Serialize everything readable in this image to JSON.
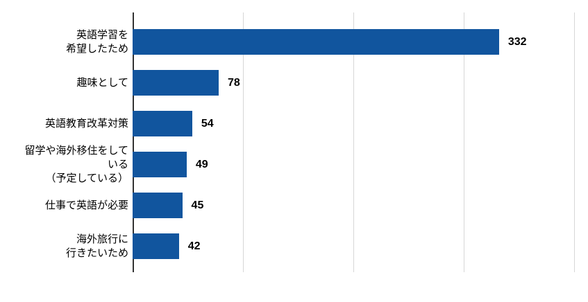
{
  "chart_data": {
    "type": "bar",
    "orientation": "horizontal",
    "title": "",
    "categories": [
      "英語学習を\n希望したため",
      "趣味として",
      "英語教育改革対策",
      "留学や海外移住をして\nいる\n（予定している）",
      "仕事で英語が必要",
      "海外旅行に\n行きたいため"
    ],
    "values": [
      332,
      78,
      54,
      49,
      45,
      42
    ],
    "value_labels": [
      "332",
      "78",
      "54",
      "49",
      "45",
      "42"
    ],
    "xlim": [
      0,
      400
    ],
    "gridline_values": [
      100,
      200,
      300,
      400
    ],
    "grid": true,
    "legend": "none",
    "axis_tick_labels_visible": false,
    "bar_color": "#11559E",
    "gridline_color": "#D6D6D6",
    "axis_color": "#333333",
    "text_color": "#000000",
    "background": "#FFFFFF"
  }
}
